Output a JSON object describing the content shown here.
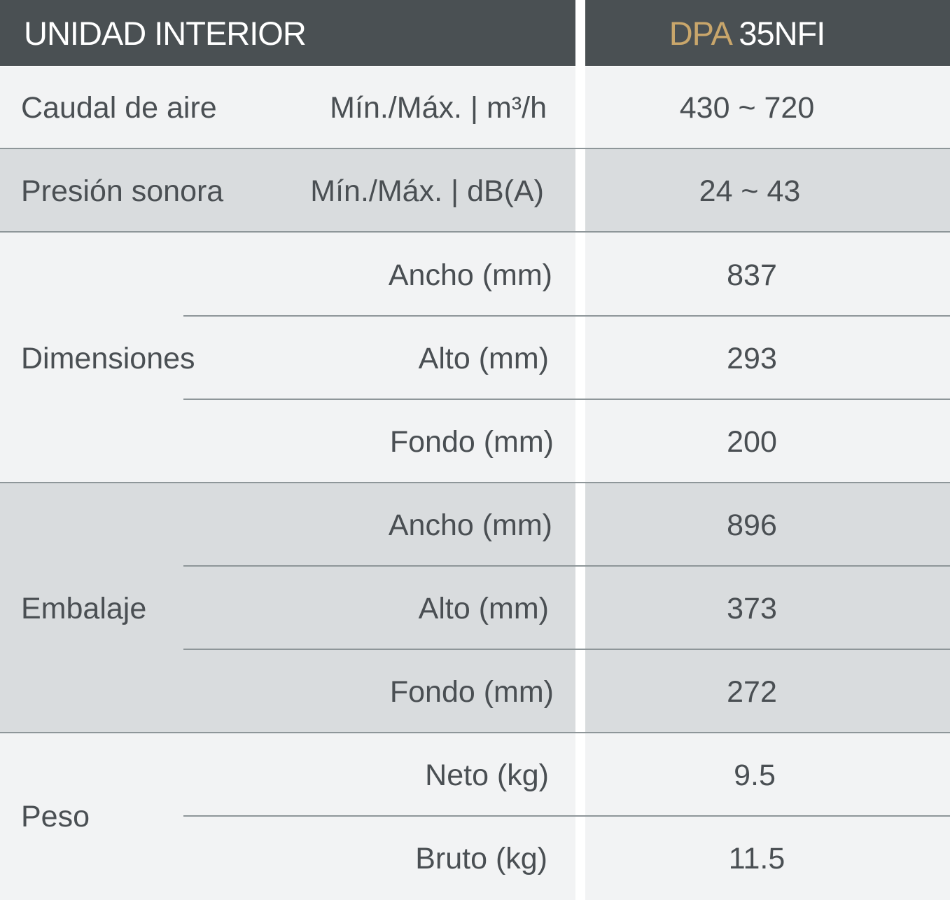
{
  "header": {
    "left_title": "UNIDAD INTERIOR",
    "model_brand": "DPA",
    "model_number": "35NFI"
  },
  "rows": {
    "caudal": {
      "label": "Caudal de aire",
      "unit": "Mín./Máx. | m³/h",
      "value": "430 ~ 720"
    },
    "presion": {
      "label": "Presión sonora",
      "unit": "Mín./Máx. | dB(A)",
      "value": "24 ~ 43"
    },
    "dimensiones": {
      "label": "Dimensiones",
      "items": [
        {
          "label": "Ancho (mm)",
          "value": "837"
        },
        {
          "label": "Alto (mm)",
          "value": "293"
        },
        {
          "label": "Fondo (mm)",
          "value": "200"
        }
      ]
    },
    "embalaje": {
      "label": "Embalaje",
      "items": [
        {
          "label": "Ancho (mm)",
          "value": "896"
        },
        {
          "label": "Alto (mm)",
          "value": "373"
        },
        {
          "label": "Fondo (mm)",
          "value": "272"
        }
      ]
    },
    "peso": {
      "label": "Peso",
      "items": [
        {
          "label": "Neto (kg)",
          "value": "9.5"
        },
        {
          "label": "Bruto (kg)",
          "value": "11.5"
        }
      ]
    }
  },
  "colors": {
    "header_bg": "#4a5053",
    "brand_accent": "#c9a66b",
    "row_light": "#f2f3f4",
    "row_dark": "#d9dcde"
  }
}
